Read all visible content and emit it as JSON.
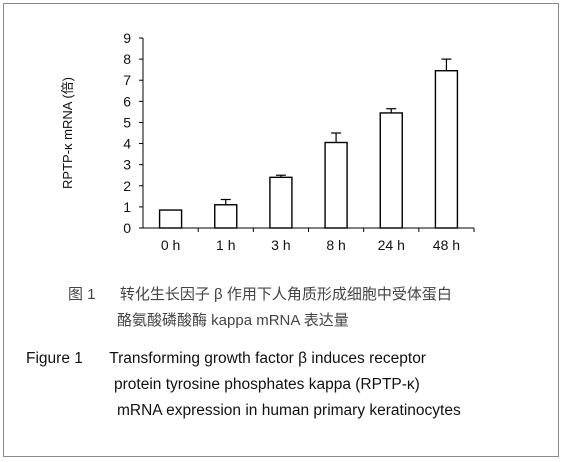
{
  "chart_data": {
    "type": "bar",
    "categories": [
      "0 h",
      "1 h",
      "3 h",
      "8 h",
      "24 h",
      "48 h"
    ],
    "values": [
      0.85,
      1.1,
      2.4,
      4.05,
      5.45,
      7.45
    ],
    "errors": [
      0.0,
      0.25,
      0.1,
      0.45,
      0.2,
      0.55
    ],
    "ylabel": "RPTP-κ mRNA (倍)",
    "ylim": [
      0,
      9
    ],
    "yticks": [
      0,
      1,
      2,
      3,
      4,
      5,
      6,
      7,
      8,
      9
    ],
    "grid": false,
    "bar_fill": "#ffffff",
    "bar_stroke": "#000000"
  },
  "caption_zh": {
    "label": "图 1",
    "line1": "转化生长因子 β 作用下人角质形成细胞中受体蛋白",
    "line2": "酪氨酸磷酸酶 kappa mRNA 表达量"
  },
  "caption_en": {
    "label": "Figure 1",
    "line1": "Transforming growth factor β induces receptor",
    "line2": "protein tyrosine phosphates kappa (RPTP-κ)",
    "line3": "mRNA expression in human primary keratinocytes"
  }
}
